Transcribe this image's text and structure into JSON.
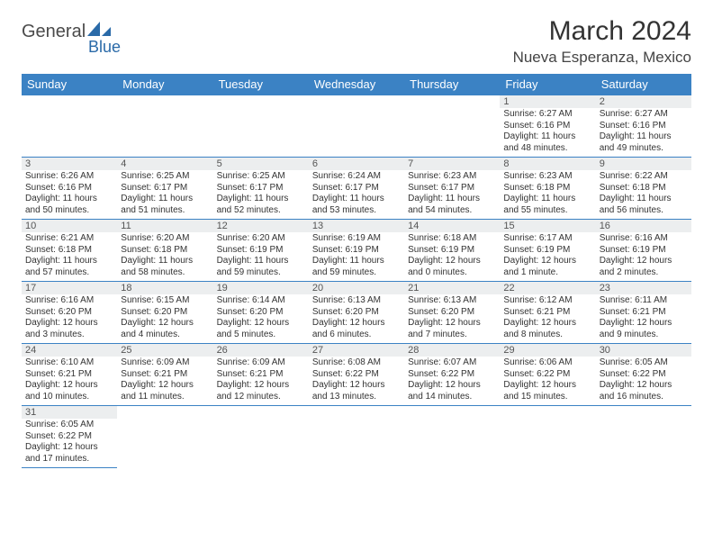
{
  "logo": {
    "text1": "General",
    "text2": "Blue"
  },
  "title": "March 2024",
  "location": "Nueva Esperanza, Mexico",
  "colors": {
    "header_bg": "#3b82c4",
    "header_text": "#ffffff",
    "cell_border": "#3b82c4",
    "daynum_bg": "#eceeef",
    "text": "#333333"
  },
  "weekdays": [
    "Sunday",
    "Monday",
    "Tuesday",
    "Wednesday",
    "Thursday",
    "Friday",
    "Saturday"
  ],
  "first_weekday_index": 5,
  "days": [
    {
      "n": 1,
      "sunrise": "6:27 AM",
      "sunset": "6:16 PM",
      "day_h": 11,
      "day_m": 48
    },
    {
      "n": 2,
      "sunrise": "6:27 AM",
      "sunset": "6:16 PM",
      "day_h": 11,
      "day_m": 49
    },
    {
      "n": 3,
      "sunrise": "6:26 AM",
      "sunset": "6:16 PM",
      "day_h": 11,
      "day_m": 50
    },
    {
      "n": 4,
      "sunrise": "6:25 AM",
      "sunset": "6:17 PM",
      "day_h": 11,
      "day_m": 51
    },
    {
      "n": 5,
      "sunrise": "6:25 AM",
      "sunset": "6:17 PM",
      "day_h": 11,
      "day_m": 52
    },
    {
      "n": 6,
      "sunrise": "6:24 AM",
      "sunset": "6:17 PM",
      "day_h": 11,
      "day_m": 53
    },
    {
      "n": 7,
      "sunrise": "6:23 AM",
      "sunset": "6:17 PM",
      "day_h": 11,
      "day_m": 54
    },
    {
      "n": 8,
      "sunrise": "6:23 AM",
      "sunset": "6:18 PM",
      "day_h": 11,
      "day_m": 55
    },
    {
      "n": 9,
      "sunrise": "6:22 AM",
      "sunset": "6:18 PM",
      "day_h": 11,
      "day_m": 56
    },
    {
      "n": 10,
      "sunrise": "6:21 AM",
      "sunset": "6:18 PM",
      "day_h": 11,
      "day_m": 57
    },
    {
      "n": 11,
      "sunrise": "6:20 AM",
      "sunset": "6:18 PM",
      "day_h": 11,
      "day_m": 58
    },
    {
      "n": 12,
      "sunrise": "6:20 AM",
      "sunset": "6:19 PM",
      "day_h": 11,
      "day_m": 59
    },
    {
      "n": 13,
      "sunrise": "6:19 AM",
      "sunset": "6:19 PM",
      "day_h": 11,
      "day_m": 59
    },
    {
      "n": 14,
      "sunrise": "6:18 AM",
      "sunset": "6:19 PM",
      "day_h": 12,
      "day_m": 0
    },
    {
      "n": 15,
      "sunrise": "6:17 AM",
      "sunset": "6:19 PM",
      "day_h": 12,
      "day_m": 1
    },
    {
      "n": 16,
      "sunrise": "6:16 AM",
      "sunset": "6:19 PM",
      "day_h": 12,
      "day_m": 2
    },
    {
      "n": 17,
      "sunrise": "6:16 AM",
      "sunset": "6:20 PM",
      "day_h": 12,
      "day_m": 3
    },
    {
      "n": 18,
      "sunrise": "6:15 AM",
      "sunset": "6:20 PM",
      "day_h": 12,
      "day_m": 4
    },
    {
      "n": 19,
      "sunrise": "6:14 AM",
      "sunset": "6:20 PM",
      "day_h": 12,
      "day_m": 5
    },
    {
      "n": 20,
      "sunrise": "6:13 AM",
      "sunset": "6:20 PM",
      "day_h": 12,
      "day_m": 6
    },
    {
      "n": 21,
      "sunrise": "6:13 AM",
      "sunset": "6:20 PM",
      "day_h": 12,
      "day_m": 7
    },
    {
      "n": 22,
      "sunrise": "6:12 AM",
      "sunset": "6:21 PM",
      "day_h": 12,
      "day_m": 8
    },
    {
      "n": 23,
      "sunrise": "6:11 AM",
      "sunset": "6:21 PM",
      "day_h": 12,
      "day_m": 9
    },
    {
      "n": 24,
      "sunrise": "6:10 AM",
      "sunset": "6:21 PM",
      "day_h": 12,
      "day_m": 10
    },
    {
      "n": 25,
      "sunrise": "6:09 AM",
      "sunset": "6:21 PM",
      "day_h": 12,
      "day_m": 11
    },
    {
      "n": 26,
      "sunrise": "6:09 AM",
      "sunset": "6:21 PM",
      "day_h": 12,
      "day_m": 12
    },
    {
      "n": 27,
      "sunrise": "6:08 AM",
      "sunset": "6:22 PM",
      "day_h": 12,
      "day_m": 13
    },
    {
      "n": 28,
      "sunrise": "6:07 AM",
      "sunset": "6:22 PM",
      "day_h": 12,
      "day_m": 14
    },
    {
      "n": 29,
      "sunrise": "6:06 AM",
      "sunset": "6:22 PM",
      "day_h": 12,
      "day_m": 15
    },
    {
      "n": 30,
      "sunrise": "6:05 AM",
      "sunset": "6:22 PM",
      "day_h": 12,
      "day_m": 16
    },
    {
      "n": 31,
      "sunrise": "6:05 AM",
      "sunset": "6:22 PM",
      "day_h": 12,
      "day_m": 17
    }
  ],
  "fmt": {
    "sunrise_prefix": "Sunrise: ",
    "sunset_prefix": "Sunset: ",
    "daylight_prefix": "Daylight: ",
    "hours_word": " hours",
    "and_word": "and ",
    "minutes_word": " minutes.",
    "minute_word": " minute."
  }
}
